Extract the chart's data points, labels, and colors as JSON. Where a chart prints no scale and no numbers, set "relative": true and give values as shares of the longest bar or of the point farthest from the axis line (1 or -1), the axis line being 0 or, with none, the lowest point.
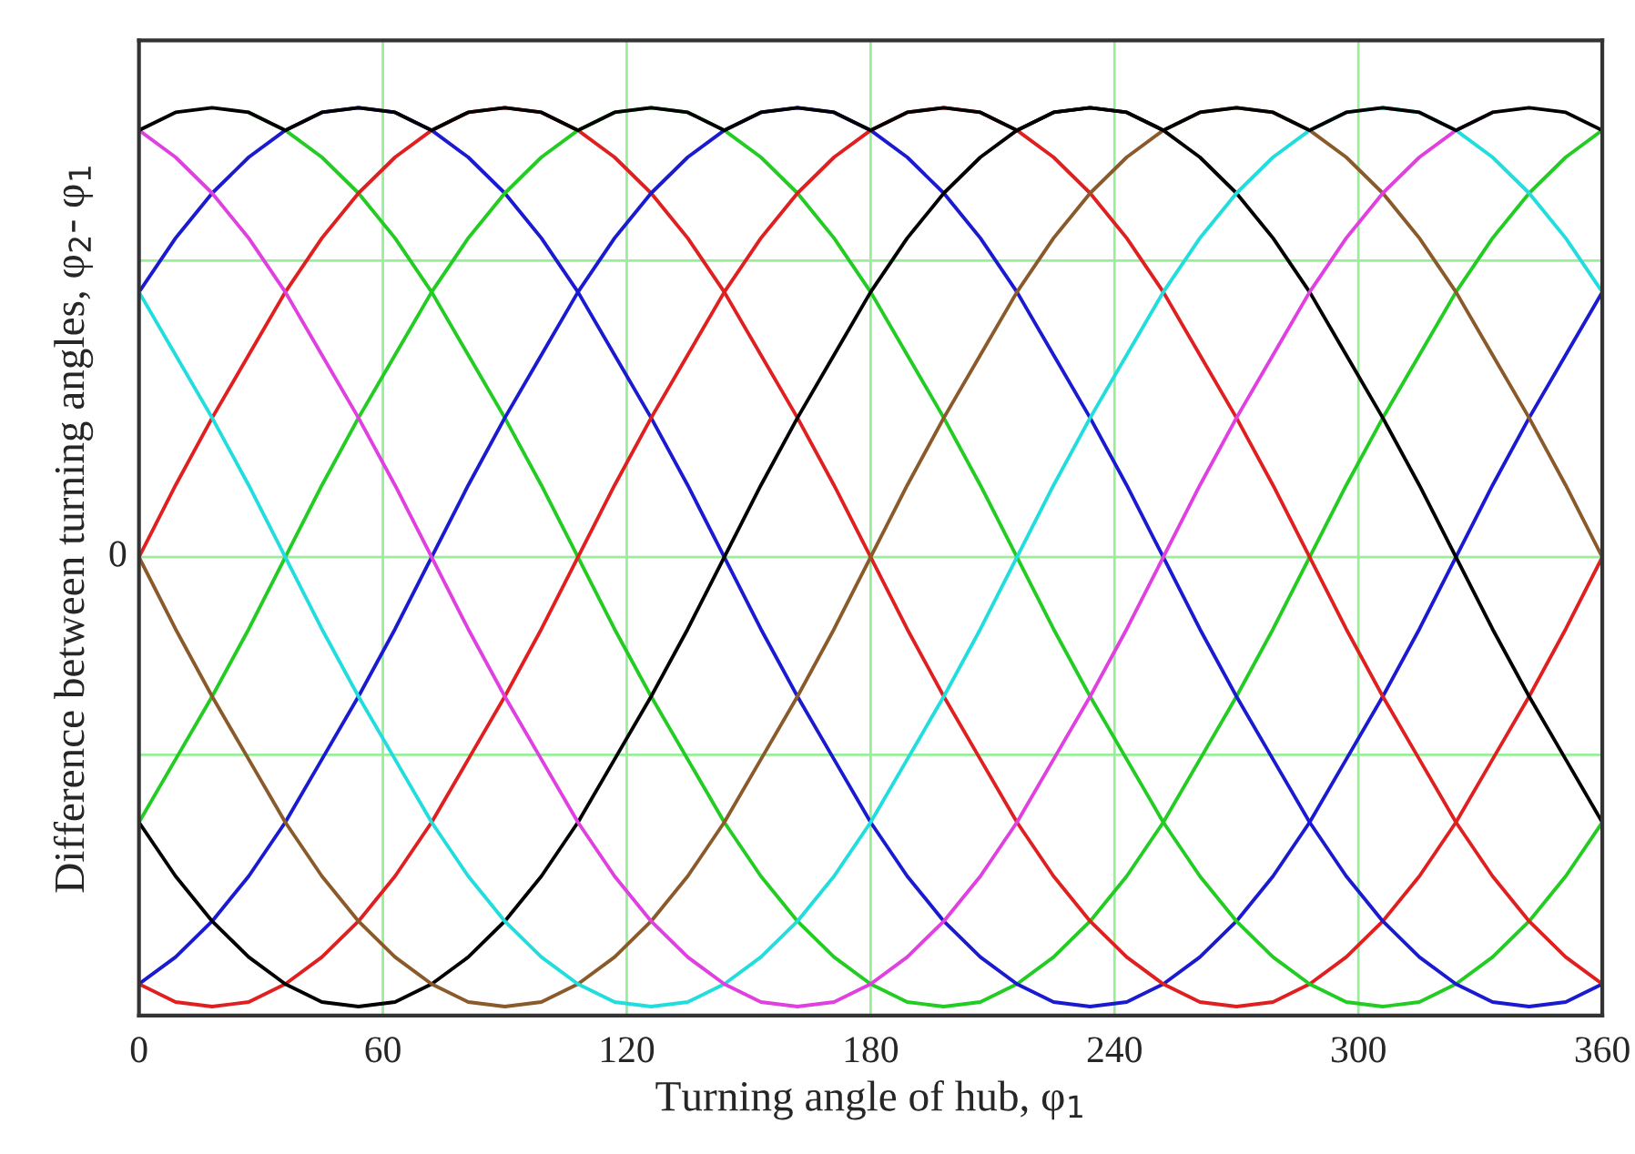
{
  "chart_data": {
    "type": "line",
    "relative": true,
    "xlabel": "Turning angle of hub, φ$_{1}$",
    "ylabel": "Difference between turning angles, φ$_{2}$- φ$_{1}$",
    "x": [
      0,
      9,
      18,
      27,
      36,
      45,
      54,
      63,
      72,
      81,
      90,
      99,
      108,
      117,
      126,
      135,
      144,
      153,
      162,
      171,
      180,
      189,
      198,
      207,
      216,
      225,
      234,
      243,
      252,
      261,
      270,
      279,
      288,
      297,
      306,
      315,
      324,
      333,
      342,
      351,
      360
    ],
    "xlim": [
      0,
      360
    ],
    "xticks": [
      0,
      60,
      120,
      180,
      240,
      300,
      360
    ],
    "grid": "x",
    "legend": false,
    "marker": "none",
    "line_style": "solid",
    "ref_lines": [
      {
        "axis": "y",
        "value": 0.66,
        "label": null,
        "color": "#99ee99"
      },
      {
        "axis": "y",
        "value": 0,
        "label": "0",
        "color": "#99ee99"
      },
      {
        "axis": "y",
        "value": -0.44,
        "label": null,
        "color": "#99ee99"
      }
    ],
    "series": [
      {
        "color": "#22cc22",
        "values": [
          null,
          null,
          null,
          0.99,
          0.95,
          0.89,
          0.81,
          0.71,
          0.59,
          0.45,
          0.31,
          0.16,
          0,
          -0.16,
          -0.31,
          -0.45,
          -0.59,
          -0.71,
          -0.81,
          -0.89,
          -0.95,
          -0.99,
          -1,
          -0.99,
          -0.95,
          -0.89,
          -0.81,
          -0.71,
          -0.59,
          -0.45,
          -0.31,
          -0.16,
          0,
          0.16,
          0.31,
          0.45,
          0.59,
          0.71,
          0.81,
          0.89,
          0.95
        ]
      },
      {
        "color": "#1a1ad0",
        "values": [
          0.59,
          0.71,
          0.81,
          0.89,
          0.95,
          0.99,
          1,
          0.99,
          0.95,
          0.89,
          0.81,
          0.71,
          0.59,
          0.45,
          0.31,
          0.16,
          0,
          -0.16,
          -0.31,
          -0.45,
          -0.59,
          -0.71,
          -0.81,
          -0.89,
          -0.95,
          -0.99,
          -1,
          -0.99,
          -0.95,
          -0.89,
          -0.81,
          -0.71,
          -0.59,
          -0.45,
          -0.31,
          -0.16,
          0,
          0.16,
          0.31,
          0.45,
          0.59
        ]
      },
      {
        "color": "#e02020",
        "values": [
          0,
          0.16,
          0.31,
          0.45,
          0.59,
          0.71,
          0.81,
          0.89,
          0.95,
          0.99,
          1,
          0.99,
          0.95,
          0.89,
          0.81,
          0.71,
          0.59,
          0.45,
          0.31,
          0.16,
          0,
          -0.16,
          -0.31,
          -0.45,
          -0.59,
          -0.71,
          -0.81,
          -0.89,
          -0.95,
          -0.99,
          -1,
          -0.99,
          -0.95,
          -0.89,
          -0.81,
          -0.71,
          -0.59,
          -0.45,
          -0.31,
          -0.16,
          0
        ]
      },
      {
        "color": "#22cc22",
        "values": [
          -0.59,
          -0.45,
          -0.31,
          -0.16,
          0,
          0.16,
          0.31,
          0.45,
          0.59,
          0.71,
          0.81,
          0.89,
          0.95,
          0.99,
          1,
          0.99,
          0.95,
          0.89,
          0.81,
          0.71,
          0.59,
          0.45,
          0.31,
          0.16,
          0,
          -0.16,
          -0.31,
          -0.45,
          -0.59,
          -0.71,
          -0.81,
          -0.89,
          -0.95,
          -0.99,
          -1,
          -0.99,
          -0.95,
          -0.89,
          -0.81,
          -0.71,
          -0.59
        ]
      },
      {
        "color": "#1a1ad0",
        "values": [
          -0.95,
          -0.89,
          -0.81,
          -0.71,
          -0.59,
          -0.45,
          -0.31,
          -0.16,
          0,
          0.16,
          0.31,
          0.45,
          0.59,
          0.71,
          0.81,
          0.89,
          0.95,
          0.99,
          1,
          0.99,
          0.95,
          0.89,
          0.81,
          0.71,
          0.59,
          0.45,
          0.31,
          0.16,
          0,
          -0.16,
          -0.31,
          -0.45,
          -0.59,
          -0.71,
          -0.81,
          -0.89,
          -0.95,
          -0.99,
          -1,
          -0.99,
          -0.95
        ]
      },
      {
        "color": "#e02020",
        "values": [
          -0.95,
          -0.99,
          -1,
          -0.99,
          -0.95,
          -0.89,
          -0.81,
          -0.71,
          -0.59,
          -0.45,
          -0.31,
          -0.16,
          0,
          0.16,
          0.31,
          0.45,
          0.59,
          0.71,
          0.81,
          0.89,
          0.95,
          0.99,
          1,
          0.99,
          0.95,
          0.89,
          0.81,
          0.71,
          0.59,
          0.45,
          0.31,
          0.16,
          0,
          -0.16,
          -0.31,
          -0.45,
          -0.59,
          -0.71,
          -0.81,
          -0.89,
          -0.95
        ]
      },
      {
        "color": "#000000",
        "values": [
          -0.59,
          -0.71,
          -0.81,
          -0.89,
          -0.95,
          -0.99,
          -1,
          -0.99,
          -0.95,
          -0.89,
          -0.81,
          -0.71,
          -0.59,
          -0.45,
          -0.31,
          -0.16,
          0,
          0.16,
          0.31,
          0.45,
          0.59,
          0.71,
          0.81,
          0.89,
          0.95,
          0.99,
          1,
          0.99,
          0.95,
          0.89,
          0.81,
          0.71,
          0.59,
          0.45,
          0.31,
          0.16,
          0,
          -0.16,
          -0.31,
          -0.45,
          -0.59
        ]
      },
      {
        "color": "#8b5a2b",
        "values": [
          0,
          -0.16,
          -0.31,
          -0.45,
          -0.59,
          -0.71,
          -0.81,
          -0.89,
          -0.95,
          -0.99,
          -1,
          -0.99,
          -0.95,
          -0.89,
          -0.81,
          -0.71,
          -0.59,
          -0.45,
          -0.31,
          -0.16,
          0,
          0.16,
          0.31,
          0.45,
          0.59,
          0.71,
          0.81,
          0.89,
          0.95,
          0.99,
          1,
          0.99,
          0.95,
          0.89,
          0.81,
          0.71,
          0.59,
          0.45,
          0.31,
          0.16,
          0
        ]
      },
      {
        "color": "#22dddd",
        "values": [
          0.59,
          0.45,
          0.31,
          0.16,
          0,
          -0.16,
          -0.31,
          -0.45,
          -0.59,
          -0.71,
          -0.81,
          -0.89,
          -0.95,
          -0.99,
          -1,
          -0.99,
          -0.95,
          -0.89,
          -0.81,
          -0.71,
          -0.59,
          -0.45,
          -0.31,
          -0.16,
          0,
          0.16,
          0.31,
          0.45,
          0.59,
          0.71,
          0.81,
          0.89,
          0.95,
          0.99,
          1,
          0.99,
          0.95,
          0.89,
          0.81,
          0.71,
          0.59
        ]
      },
      {
        "color": "#e040e0",
        "values": [
          0.95,
          0.89,
          0.81,
          0.71,
          0.59,
          0.45,
          0.31,
          0.16,
          0,
          -0.16,
          -0.31,
          -0.45,
          -0.59,
          -0.71,
          -0.81,
          -0.89,
          -0.95,
          -0.99,
          -1,
          -0.99,
          -0.95,
          -0.89,
          -0.81,
          -0.71,
          -0.59,
          -0.45,
          -0.31,
          -0.16,
          0,
          0.16,
          0.31,
          0.45,
          0.59,
          0.71,
          0.81,
          0.89,
          0.95,
          0.99,
          null,
          null,
          null
        ]
      },
      {
        "color": "#000000",
        "values": [
          0.95,
          0.99,
          1,
          0.99,
          0.95,
          0.99,
          1,
          0.99,
          0.95,
          0.99,
          1,
          0.99,
          0.95,
          0.99,
          1,
          0.99,
          0.95,
          0.99,
          1,
          0.99,
          0.95,
          0.99,
          1,
          0.99,
          0.95,
          0.99,
          1,
          0.99,
          0.95,
          0.99,
          1,
          0.99,
          0.95,
          0.99,
          1,
          0.99,
          0.95,
          0.99,
          1,
          0.99,
          0.95
        ]
      }
    ]
  }
}
